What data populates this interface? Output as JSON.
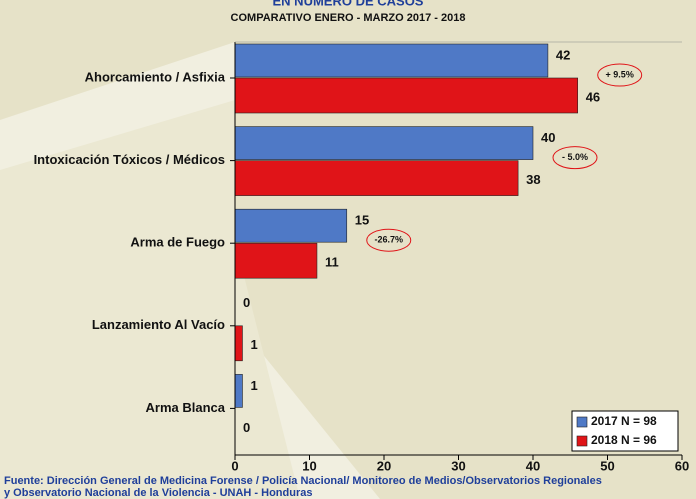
{
  "chart_data": {
    "type": "hbar",
    "title": "EN NÚMERO DE CASOS",
    "subtitle": "COMPARATIVO ENERO - MARZO 2017 - 2018",
    "categories": [
      "Ahorcamiento / Asfixia",
      "Intoxicación Tóxicos / Médicos",
      "Arma de Fuego",
      "Lanzamiento Al Vacío",
      "Arma Blanca"
    ],
    "series": [
      {
        "name": "2017 N = 98",
        "color": "#4f79c6",
        "values": [
          42,
          40,
          15,
          0,
          1
        ]
      },
      {
        "name": "2018 N = 96",
        "color": "#e01418",
        "values": [
          46,
          38,
          11,
          1,
          0
        ]
      }
    ],
    "annotations": [
      "+ 9.5%",
      "- 5.0%",
      "-26.7%"
    ],
    "xlim": [
      0,
      60
    ],
    "xticks": [
      0,
      10,
      20,
      30,
      40,
      50,
      60
    ],
    "legend": "bottom-right",
    "source": [
      "Fuente: Dirección General de Medicina Forense / Policía Nacional/ Monitoreo de Medios/Observatorios Regionales",
      "y Observatorio Nacional de la Violencia - UNAH - Honduras"
    ]
  }
}
